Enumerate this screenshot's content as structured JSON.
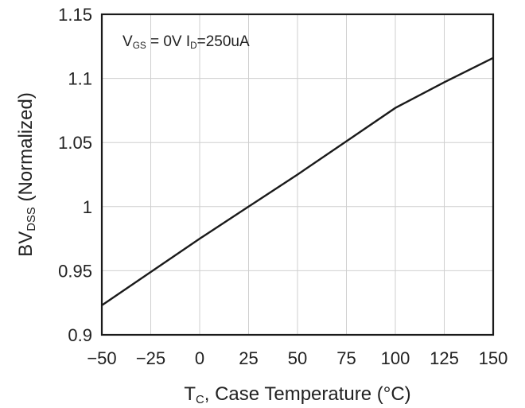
{
  "chart_data": {
    "type": "line",
    "title": "",
    "xlabel": {
      "main": "T",
      "sub": "C",
      "rest": ", Case Temperature (°C)"
    },
    "ylabel": {
      "main": "BV",
      "sub": "DSS",
      "rest": " (Normalized)"
    },
    "xlim": [
      -50,
      150
    ],
    "ylim": [
      0.9,
      1.15
    ],
    "x_ticks": [
      -50,
      -25,
      0,
      25,
      50,
      75,
      100,
      125,
      150
    ],
    "x_tick_labels": [
      "−50",
      "−25",
      "0",
      "25",
      "50",
      "75",
      "100",
      "125",
      "150"
    ],
    "y_ticks": [
      0.9,
      0.95,
      1.0,
      1.05,
      1.1,
      1.15
    ],
    "y_tick_labels": [
      "0.9",
      "0.95",
      "1",
      "1.05",
      "1.1",
      "1.15"
    ],
    "grid": true,
    "annotation": {
      "parts": [
        {
          "text": "V",
          "sub": false
        },
        {
          "text": "GS",
          "sub": true
        },
        {
          "text": " = 0V I",
          "sub": false
        },
        {
          "text": "D",
          "sub": true
        },
        {
          "text": "=250uA",
          "sub": false
        }
      ],
      "position": "top-left"
    },
    "series": [
      {
        "x": [
          -50,
          0,
          25,
          50,
          75,
          100,
          125,
          150
        ],
        "y": [
          0.923,
          0.975,
          1.0,
          1.025,
          1.051,
          1.077,
          1.097,
          1.116
        ]
      }
    ]
  }
}
